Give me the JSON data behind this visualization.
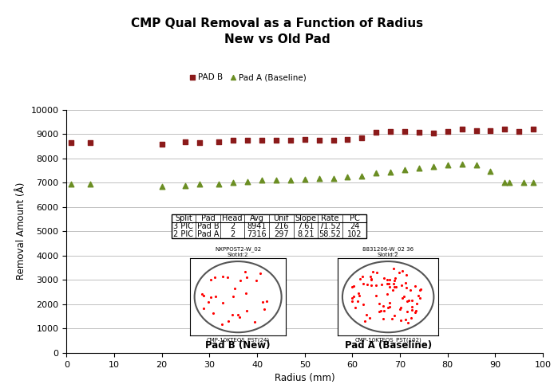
{
  "title": "CMP Qual Removal as a Function of Radius\nNew vs Old Pad",
  "xlabel": "Radius (mm)",
  "ylabel": "Removal Amount (Å)",
  "xlim": [
    0,
    100
  ],
  "ylim": [
    0,
    10000
  ],
  "yticks": [
    0,
    1000,
    2000,
    3000,
    4000,
    5000,
    6000,
    7000,
    8000,
    9000,
    10000
  ],
  "xticks": [
    0,
    10,
    20,
    30,
    40,
    50,
    60,
    70,
    80,
    90,
    100
  ],
  "pad_b_color": "#8B1A1A",
  "pad_a_color": "#6B8E23",
  "pad_b_x": [
    1,
    5,
    20,
    25,
    28,
    32,
    35,
    38,
    41,
    44,
    47,
    50,
    53,
    56,
    59,
    62,
    65,
    68,
    71,
    74,
    77,
    80,
    83,
    86,
    89,
    92,
    95,
    98
  ],
  "pad_b_y": [
    8650,
    8660,
    8580,
    8680,
    8650,
    8680,
    8760,
    8750,
    8760,
    8750,
    8750,
    8780,
    8750,
    8760,
    8780,
    8840,
    9080,
    9120,
    9120,
    9080,
    9050,
    9100,
    9200,
    9150,
    9150,
    9200,
    9100,
    9200
  ],
  "pad_a_x": [
    1,
    5,
    20,
    25,
    28,
    32,
    35,
    38,
    41,
    44,
    47,
    50,
    53,
    56,
    59,
    62,
    65,
    68,
    71,
    74,
    77,
    80,
    83,
    86,
    89,
    92,
    93,
    96,
    98
  ],
  "pad_a_y": [
    6940,
    6940,
    6850,
    6880,
    6940,
    6930,
    7020,
    7050,
    7100,
    7100,
    7120,
    7150,
    7180,
    7180,
    7230,
    7280,
    7400,
    7450,
    7530,
    7600,
    7680,
    7720,
    7750,
    7720,
    7460,
    7020,
    7000,
    7020,
    7000
  ],
  "table_data": [
    [
      "3 PIC",
      "Pad B",
      "2",
      "8941",
      "216",
      "7.61",
      "71.52",
      "24"
    ],
    [
      "2 PIC",
      "Pad A",
      "2",
      "7316",
      "297",
      "8.21",
      "58.52",
      "102"
    ]
  ],
  "table_headers": [
    "Split",
    "Pad",
    "Head",
    "Avg",
    "Unif",
    "Slope",
    "Rate",
    "PC"
  ],
  "wafer1_title": "NXPPOST2-W_02\nSlotId:2",
  "wafer1_xlabel": "CMP-10KTEOS_PST(24)",
  "wafer1_footlabel": "Pad B (New)",
  "wafer2_title": "8831206-W_02 36\nSlotId:2",
  "wafer2_xlabel": "CMP-10KTEOS_PST(102)",
  "wafer2_footlabel": "Pad A (Baseline)",
  "pad_b_label": "PAD B",
  "pad_a_label": "Pad A (Baseline)",
  "bg_color": "#FFFFFF",
  "grid_color": "#C0C0C0"
}
